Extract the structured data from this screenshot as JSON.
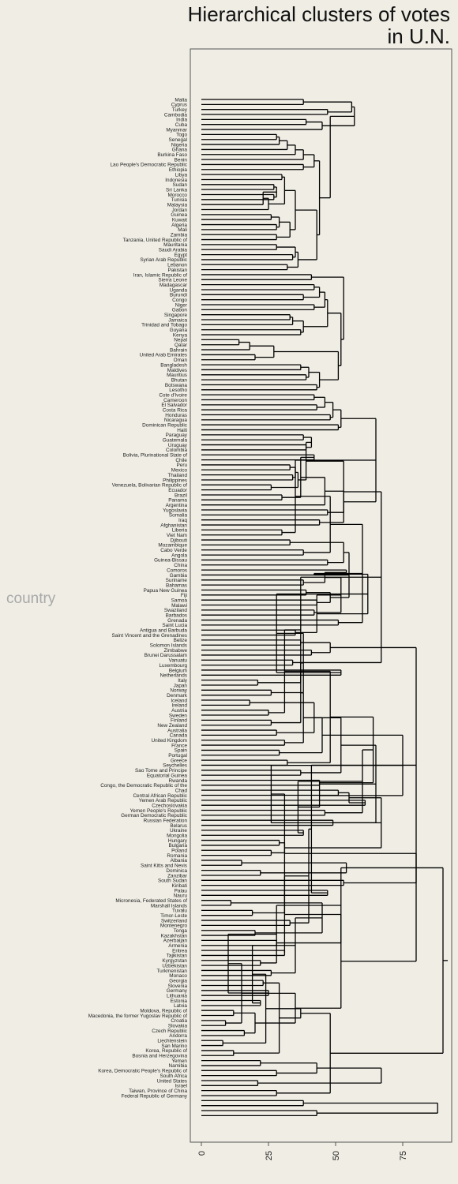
{
  "chart_data": {
    "type": "dendrogram",
    "title_lines": [
      "Hierarchical clusters of votes",
      "in U.N."
    ],
    "ylabel": "country",
    "xlim": [
      -8,
      95
    ],
    "x_ticks": [
      "0",
      "25",
      "50",
      "75"
    ],
    "x_tick_values": [
      0,
      25,
      50,
      75
    ],
    "leaves": [
      "Malta",
      "Cyprus",
      "Turkey",
      "Cambodia",
      "India",
      "Cuba",
      "Myanmar",
      "Togo",
      "Senegal",
      "Nigeria",
      "Ghana",
      "Burkina Faso",
      "Benin",
      "Lao People's Democratic Republic",
      "Ethiopia",
      "Libya",
      "Indonesia",
      "Sudan",
      "Sri Lanka",
      "Morocco",
      "Tunisia",
      "Malaysia",
      "Jordan",
      "Guinea",
      "Kuwait",
      "Algeria",
      "Mali",
      "Zambia",
      "Tanzania, United Republic of",
      "Mauritania",
      "Saudi Arabia",
      "Egypt",
      "Syrian Arab Republic",
      "Lebanon",
      "Pakistan",
      "Iran, Islamic Republic of",
      "Sierra Leone",
      "Madagascar",
      "Uganda",
      "Burundi",
      "Congo",
      "Niger",
      "Gabon",
      "Singapore",
      "Jamaica",
      "Trinidad and Tobago",
      "Guyana",
      "Kenya",
      "Nepal",
      "Qatar",
      "Bahrain",
      "United Arab Emirates",
      "Oman",
      "Bangladesh",
      "Maldives",
      "Mauritius",
      "Bhutan",
      "Botswana",
      "Lesotho",
      "Cote d'Ivoire",
      "Cameroon",
      "El Salvador",
      "Costa Rica",
      "Honduras",
      "Nicaragua",
      "Dominican Republic",
      "Haiti",
      "Paraguay",
      "Guatemala",
      "Uruguay",
      "Colombia",
      "Bolivia, Plurinational State of",
      "Chile",
      "Peru",
      "Mexico",
      "Thailand",
      "Philippines",
      "Venezuela, Bolivarian Republic of",
      "Ecuador",
      "Brazil",
      "Panama",
      "Argentina",
      "Yugoslavia",
      "Somalia",
      "Iraq",
      "Afghanistan",
      "Liberia",
      "Viet Nam",
      "Djibouti",
      "Mozambique",
      "Cabo Verde",
      "Angola",
      "Guinea-Bissau",
      "China",
      "Comoros",
      "Gambia",
      "Suriname",
      "Bahamas",
      "Papua New Guinea",
      "Fiji",
      "Samoa",
      "Malawi",
      "Swaziland",
      "Barbados",
      "Grenada",
      "Saint Lucia",
      "Antigua and Barbuda",
      "Saint Vincent and the Grenadines",
      "Belize",
      "Solomon Islands",
      "Zimbabwe",
      "Brunei Darussalam",
      "Vanuatu",
      "Luxembourg",
      "Belgium",
      "Netherlands",
      "Italy",
      "Japan",
      "Norway",
      "Denmark",
      "Iceland",
      "Ireland",
      "Austria",
      "Sweden",
      "Finland",
      "New Zealand",
      "Australia",
      "Canada",
      "United Kingdom",
      "France",
      "Spain",
      "Portugal",
      "Greece",
      "Seychelles",
      "Sao Tome and Principe",
      "Equatorial Guinea",
      "Rwanda",
      "Congo, the Democratic Republic of the",
      "Chad",
      "Central African Republic",
      "Yemen Arab Republic",
      "Czechoslovakia",
      "Yemen People's Republic",
      "German Democratic Republic",
      "Russian Federation",
      "Belarus",
      "Ukraine",
      "Mongolia",
      "Hungary",
      "Bulgaria",
      "Poland",
      "Romania",
      "Albania",
      "Saint Kitts and Nevis",
      "Dominica",
      "Zanzibar",
      "South Sudan",
      "Kiribati",
      "Palau",
      "Nauru",
      "Micronesia, Federated States of",
      "Marshall Islands",
      "Tuvalu",
      "Timor-Leste",
      "Switzerland",
      "Montenegro",
      "Tonga",
      "Kazakhstan",
      "Azerbaijan",
      "Armenia",
      "Eritrea",
      "Tajikistan",
      "Kyrgyzstan",
      "Uzbekistan",
      "Turkmenistan",
      "Monaco",
      "Georgia",
      "Slovenia",
      "Germany",
      "Lithuania",
      "Estonia",
      "Latvia",
      "Moldova, Republic of",
      "Macedonia, the former Yugoslav Republic of",
      "Croatia",
      "Slovakia",
      "Czech Republic",
      "Andorra",
      "Liechtenstein",
      "San Marino",
      "Korea, Republic of",
      "Bosnia and Herzegovina",
      "Yemen",
      "Namibia",
      "Korea, Democratic People's Republic of",
      "South Africa",
      "United States",
      "Israel",
      "Taiwan, Province of China",
      "Federal Republic of Germany"
    ],
    "merges": [
      [
        0,
        1,
        38
      ],
      [
        2,
        3,
        47
      ],
      [
        "c1",
        "c0",
        56
      ],
      [
        4,
        5,
        39
      ],
      [
        6,
        "c3",
        45
      ],
      [
        "c2",
        "c4",
        57
      ],
      [
        7,
        8,
        28
      ],
      [
        9,
        "c6",
        29
      ],
      [
        10,
        "c7",
        32
      ],
      [
        11,
        "c8",
        35
      ],
      [
        12,
        "c9",
        38
      ],
      [
        13,
        14,
        38
      ],
      [
        "c10",
        "c11",
        42
      ],
      [
        15,
        16,
        30
      ],
      [
        17,
        18,
        27
      ],
      [
        19,
        20,
        27
      ],
      [
        "c14",
        "c15",
        28
      ],
      [
        "c16",
        21,
        23
      ],
      [
        22,
        "c17",
        25
      ],
      [
        "c13",
        "c18",
        31
      ],
      [
        23,
        24,
        26
      ],
      [
        25,
        26,
        28
      ],
      [
        "c20",
        "c21",
        29
      ],
      [
        27,
        28,
        28
      ],
      [
        "c22",
        "c23",
        33
      ],
      [
        "c19",
        "c24",
        35
      ],
      [
        29,
        30,
        28
      ],
      [
        31,
        32,
        34
      ],
      [
        "c26",
        "c27",
        35
      ],
      [
        33,
        34,
        32
      ],
      [
        "c28",
        "c29",
        36
      ],
      [
        "c25",
        "c30",
        43
      ],
      [
        "c12",
        "c31",
        44
      ],
      [
        "c5",
        "c32",
        48
      ],
      [
        35,
        36,
        41
      ],
      [
        37,
        38,
        42
      ],
      [
        39,
        40,
        38
      ],
      [
        "c35",
        "c36",
        44
      ],
      [
        41,
        42,
        42
      ],
      [
        "c37",
        "c38",
        46
      ],
      [
        43,
        44,
        33
      ],
      [
        45,
        "c40",
        34
      ],
      [
        46,
        47,
        37
      ],
      [
        "c41",
        "c42",
        38
      ],
      [
        "c39",
        "c43",
        47
      ],
      [
        48,
        49,
        14
      ],
      [
        "c45",
        50,
        18
      ],
      [
        51,
        52,
        20
      ],
      [
        "c46",
        "c47",
        27
      ],
      [
        53,
        54,
        37
      ],
      [
        55,
        56,
        39
      ],
      [
        "c49",
        "c50",
        40
      ],
      [
        57,
        58,
        43
      ],
      [
        "c51",
        "c52",
        44
      ],
      [
        "c48",
        "c53",
        51
      ],
      [
        "c44",
        "c54",
        52
      ],
      [
        "c34",
        "c55",
        53
      ],
      [
        59,
        60,
        42
      ],
      [
        61,
        62,
        43
      ],
      [
        "c57",
        "c58",
        46
      ],
      [
        63,
        64,
        48
      ],
      [
        "c59",
        "c60",
        49
      ],
      [
        65,
        66,
        51
      ],
      [
        "c61",
        "c62",
        52
      ],
      [
        67,
        68,
        38
      ],
      [
        69,
        70,
        39
      ],
      [
        "c64",
        "c65",
        41
      ],
      [
        71,
        72,
        42
      ],
      [
        73,
        74,
        33
      ],
      [
        75,
        76,
        34
      ],
      [
        77,
        78,
        26
      ],
      [
        "c68",
        "c69",
        35
      ],
      [
        79,
        80,
        30
      ],
      [
        "c70",
        "c71",
        36
      ],
      [
        "c67",
        "c72",
        37
      ],
      [
        "c66",
        "c73",
        39
      ],
      [
        "c74",
        81,
        46
      ],
      [
        82,
        83,
        47
      ],
      [
        84,
        85,
        44
      ],
      [
        "c76",
        "c77",
        53
      ],
      [
        "c75",
        "c78",
        53
      ],
      [
        "c63",
        "c79",
        65
      ],
      [
        86,
        87,
        30
      ],
      [
        88,
        89,
        33
      ],
      [
        "c81",
        "c82",
        35
      ],
      [
        90,
        91,
        38
      ],
      [
        92,
        93,
        47
      ],
      [
        "c84",
        "c85",
        48
      ],
      [
        "c83",
        "c86",
        53
      ],
      [
        94,
        95,
        54
      ],
      [
        96,
        97,
        38
      ],
      [
        98,
        99,
        39
      ],
      [
        100,
        101,
        43
      ],
      [
        "c89",
        "c90",
        46
      ],
      [
        102,
        103,
        42
      ],
      [
        "c91",
        "c92",
        48
      ],
      [
        104,
        105,
        51
      ],
      [
        "c93",
        "c94",
        52
      ],
      [
        "c88",
        "c95",
        55
      ],
      [
        "c87",
        "c96",
        60
      ],
      [
        106,
        107,
        35
      ],
      [
        108,
        109,
        37
      ],
      [
        110,
        111,
        41
      ],
      [
        "c98",
        "c99",
        42
      ],
      [
        "c97",
        "c100",
        43
      ],
      [
        112,
        113,
        34
      ],
      [
        "c101",
        "c102",
        48
      ],
      [
        114,
        115,
        52
      ],
      [
        "c103",
        "c104",
        62
      ],
      [
        "c80",
        "c105",
        67
      ],
      [
        116,
        117,
        21
      ],
      [
        118,
        119,
        26
      ],
      [
        "c107",
        "c108",
        28
      ],
      [
        120,
        121,
        18
      ],
      [
        "c109",
        "c110",
        37
      ],
      [
        122,
        123,
        25
      ],
      [
        "c111",
        "c112",
        38
      ],
      [
        124,
        125,
        26
      ],
      [
        126,
        127,
        28
      ],
      [
        "c114",
        "c115",
        31
      ],
      [
        128,
        129,
        31
      ],
      [
        "c116",
        "c117",
        37
      ],
      [
        "c113",
        "c118",
        42
      ],
      [
        130,
        131,
        29
      ],
      [
        132,
        133,
        32
      ],
      [
        "c120",
        "c121",
        38
      ],
      [
        134,
        135,
        37
      ],
      [
        "c122",
        "c123",
        45
      ],
      [
        "c119",
        "c124",
        48
      ],
      [
        136,
        137,
        44
      ],
      [
        "c125",
        "c126",
        52
      ],
      [
        138,
        139,
        51
      ],
      [
        140,
        141,
        61
      ],
      [
        "c128",
        "c129",
        64
      ],
      [
        142,
        143,
        46
      ],
      [
        144,
        145,
        49
      ],
      [
        "c131",
        "c132",
        55
      ],
      [
        146,
        147,
        38
      ],
      [
        "c133",
        "c134",
        60
      ],
      [
        "c130",
        "c135",
        65
      ],
      [
        148,
        149,
        29
      ],
      [
        150,
        151,
        26
      ],
      [
        "c137",
        "c138",
        36
      ],
      [
        152,
        153,
        15
      ],
      [
        154,
        155,
        22
      ],
      [
        "c140",
        "c141",
        31
      ],
      [
        "c139",
        "c142",
        44
      ],
      [
        156,
        157,
        53
      ],
      [
        "c143",
        "c144",
        54
      ],
      [
        "c136",
        "c145",
        67
      ],
      [
        "c127",
        "c146",
        75
      ],
      [
        "c106",
        "c147",
        80
      ],
      [
        158,
        159,
        47
      ],
      [
        160,
        161,
        11
      ],
      [
        162,
        163,
        19
      ],
      [
        "c149",
        "c150",
        26
      ],
      [
        164,
        165,
        33
      ],
      [
        "c151",
        "c152",
        41
      ],
      [
        166,
        167,
        20
      ],
      [
        168,
        169,
        28
      ],
      [
        "c154",
        "c155",
        31
      ],
      [
        170,
        171,
        31
      ],
      [
        "c156",
        "c157",
        40
      ],
      [
        "c153",
        "c158",
        45
      ],
      [
        "c148",
        "c159",
        52
      ],
      [
        172,
        173,
        22
      ],
      [
        174,
        175,
        26
      ],
      [
        "c161",
        "c162",
        31
      ],
      [
        176,
        177,
        23
      ],
      [
        178,
        179,
        25
      ],
      [
        "c164",
        "c165",
        28
      ],
      [
        "c163",
        "c166",
        35
      ],
      [
        180,
        181,
        22
      ],
      [
        182,
        183,
        12
      ],
      [
        184,
        185,
        9
      ],
      [
        "c169",
        "c170",
        10
      ],
      [
        186,
        187,
        16
      ],
      [
        "c171",
        "c172",
        19
      ],
      [
        188,
        189,
        8
      ],
      [
        190,
        191,
        12
      ],
      [
        "c174",
        "c175",
        15
      ],
      [
        "c173",
        "c176",
        20
      ],
      [
        192,
        193,
        22
      ],
      [
        "c177",
        "c178",
        24
      ],
      [
        "c168",
        "c179",
        29
      ],
      [
        194,
        195,
        28
      ],
      [
        "c180",
        "c181",
        35
      ],
      [
        196,
        197,
        21
      ],
      [
        198,
        199,
        28
      ],
      [
        "c183",
        "c184",
        37
      ],
      [
        "c182",
        "c185",
        43
      ],
      [
        "c167",
        "c186",
        52
      ],
      [
        200,
        201,
        38
      ],
      [
        202,
        203,
        43
      ],
      [
        "c188",
        "c189",
        48
      ],
      [
        "c187",
        "c190",
        67
      ],
      [
        "c160",
        "c191",
        80
      ],
      [
        "c192",
        "c193",
        88
      ],
      [
        "c148",
        "c194",
        90
      ]
    ]
  }
}
